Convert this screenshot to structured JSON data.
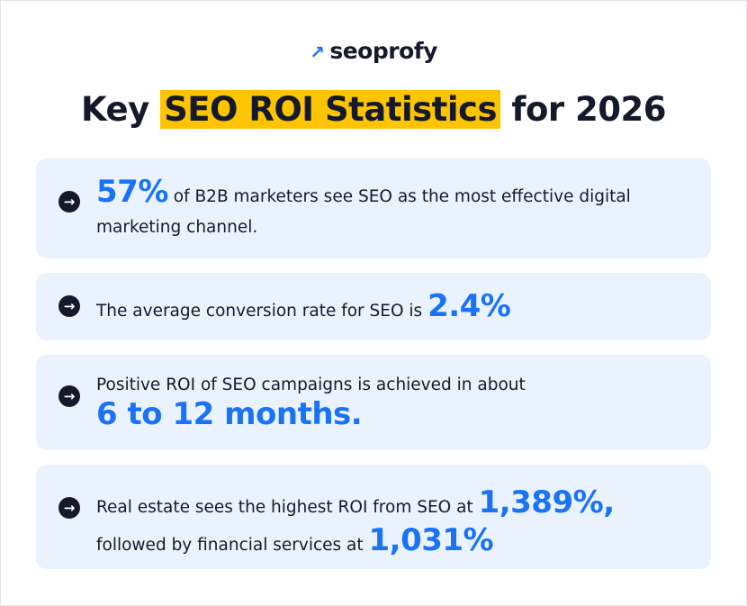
{
  "brand": {
    "name": "seoprofy",
    "arrow": "↗",
    "accent": "#1a73f5"
  },
  "title": {
    "prefix": "Key ",
    "highlight": "SEO ROI Statistics",
    "suffix": " for 2026",
    "highlight_color": "#ffc400"
  },
  "cards": [
    {
      "stat": "57%",
      "text": " of B2B marketers see SEO as the most effective digital marketing channel."
    },
    {
      "text": "The average conversion rate for SEO is ",
      "stat": "2.4%"
    },
    {
      "text": "Positive ROI of SEO campaigns is achieved in about",
      "stat": "6 to 12 months."
    },
    {
      "text": "Real estate sees the highest ROI from SEO at ",
      "stat": "1,389%,",
      "text2": "followed by financial services at ",
      "stat2": "1,031%"
    }
  ],
  "icon": "arrow-right-circle-icon"
}
